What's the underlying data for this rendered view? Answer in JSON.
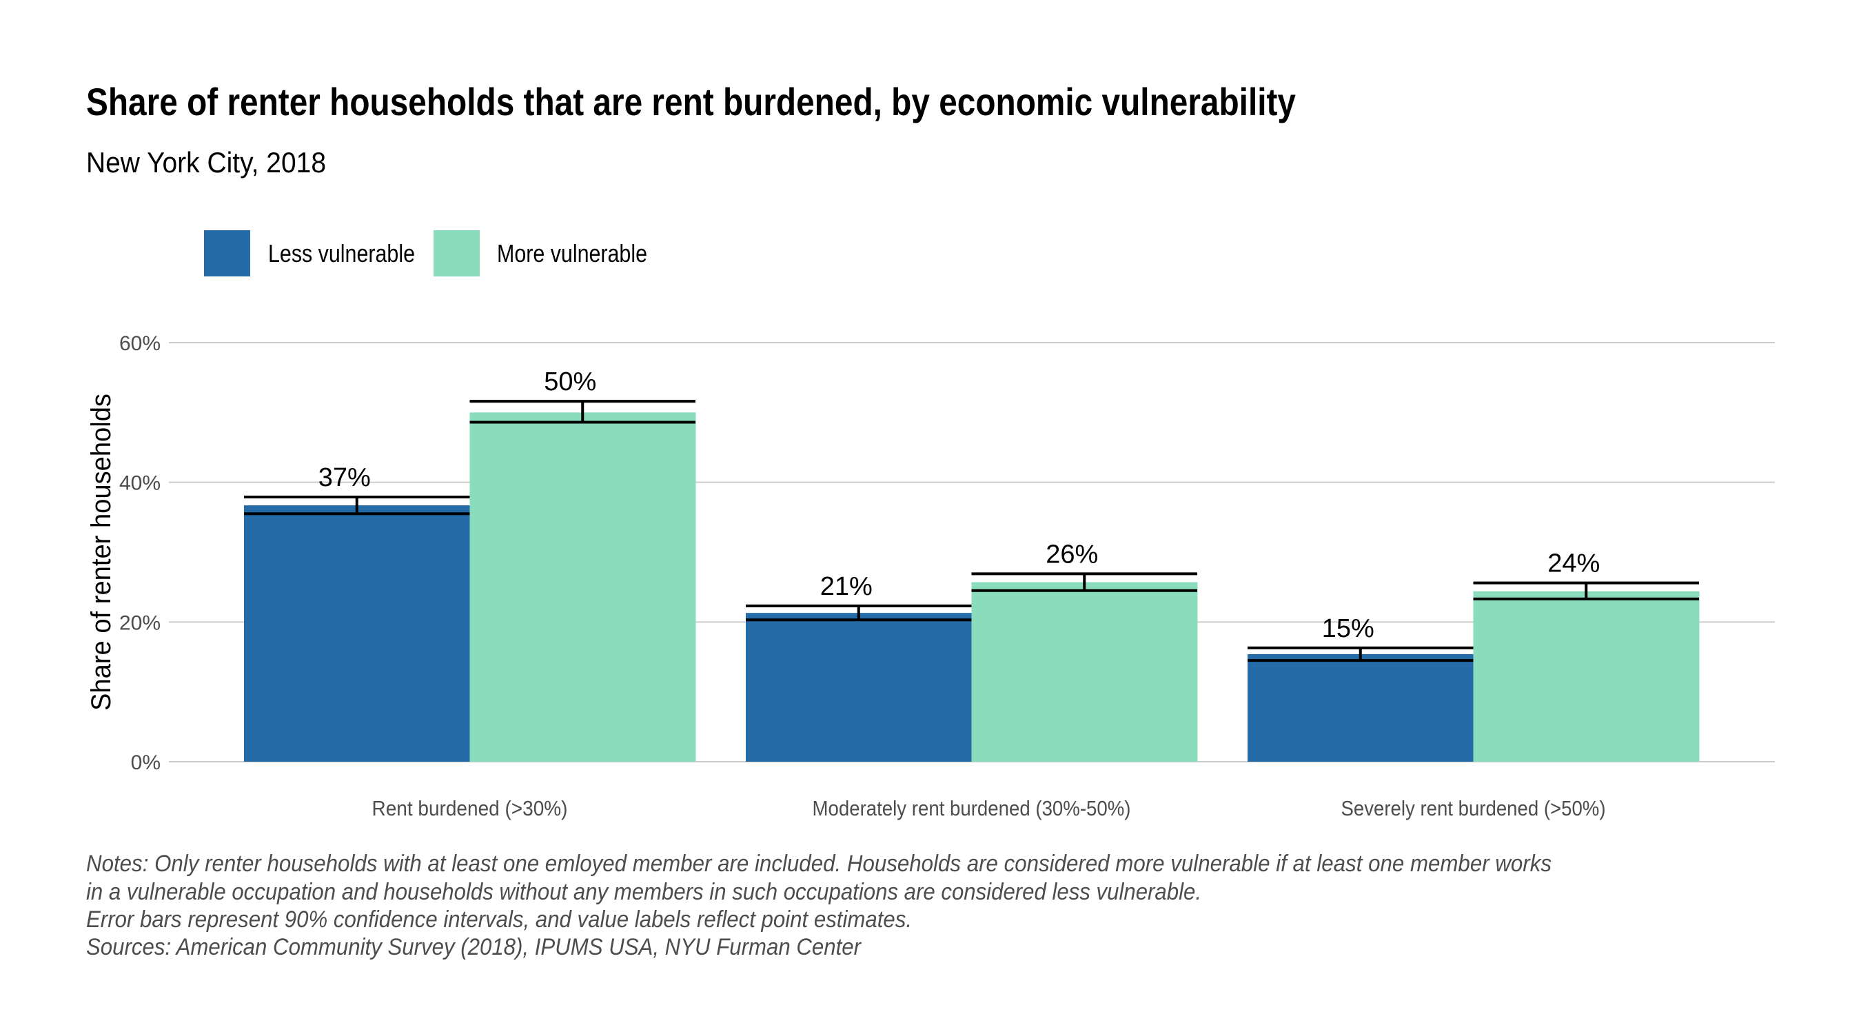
{
  "colors": {
    "less_vulnerable": "#246BA8",
    "more_vulnerable": "#8ADDBC",
    "grid": "#CCCCCC",
    "error_bar": "#000000"
  },
  "chart_data": {
    "type": "bar",
    "title": "Share of renter households that are rent burdened, by economic vulnerability",
    "subtitle": "New York City, 2018",
    "xlabel": "",
    "ylabel": "Share of renter households",
    "ylim": [
      0,
      60
    ],
    "yticks": [
      0,
      20,
      40,
      60
    ],
    "ytick_labels": [
      "0%",
      "20%",
      "40%",
      "60%"
    ],
    "grid": true,
    "legend_position": "top-left",
    "categories": [
      "Rent burdened (>30%)",
      "Moderately rent burdened (30%-50%)",
      "Severely rent burdened (>50%)"
    ],
    "series": [
      {
        "name": "Less vulnerable",
        "color": "#246BA8",
        "values": [
          36.7,
          21.3,
          15.4
        ],
        "labels": [
          "37%",
          "21%",
          "15%"
        ],
        "ci_low": [
          35.5,
          20.3,
          14.5
        ],
        "ci_high": [
          37.9,
          22.3,
          16.3
        ]
      },
      {
        "name": "More vulnerable",
        "color": "#8ADDBC",
        "values": [
          50.0,
          25.7,
          24.4
        ],
        "labels": [
          "50%",
          "26%",
          "24%"
        ],
        "ci_low": [
          48.6,
          24.5,
          23.3
        ],
        "ci_high": [
          51.6,
          26.9,
          25.6
        ]
      }
    ],
    "notes": [
      "Notes: Only renter households with at least one emloyed member are included. Households are considered  more vulnerable if at least one member works",
      "in a vulnerable occupation and households without any members in such occupations are considered less vulnerable.",
      "Error bars represent 90% confidence intervals, and value labels reflect point estimates.",
      "Sources: American Community Survey (2018), IPUMS USA, NYU Furman Center"
    ]
  }
}
